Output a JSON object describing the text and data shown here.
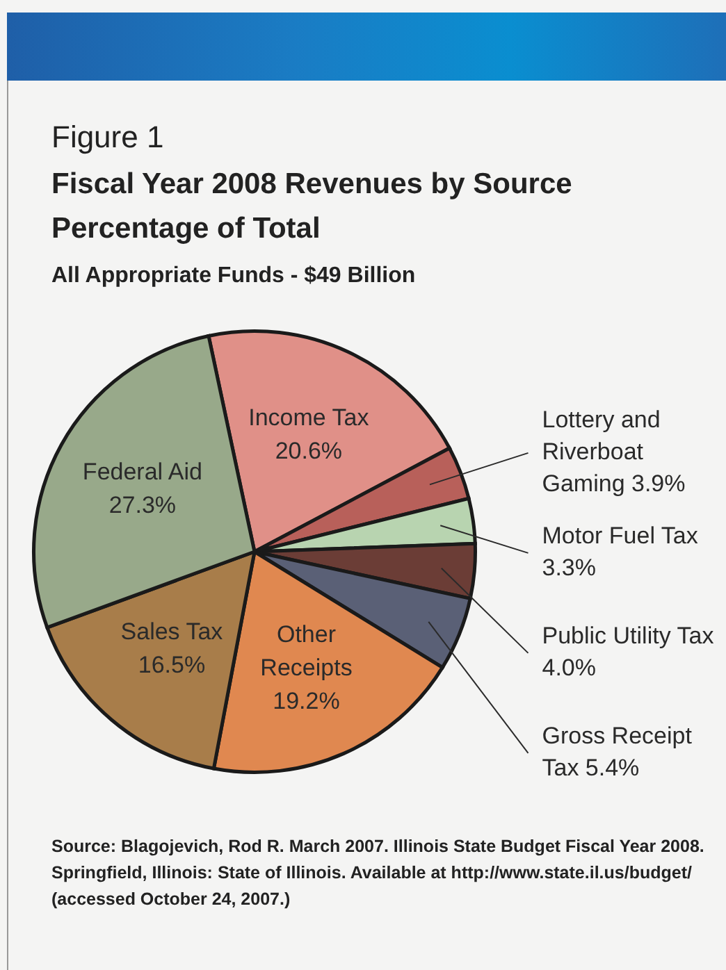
{
  "chart_data": {
    "type": "pie",
    "title": "Fiscal Year 2008 Revenues by Source",
    "subtitle": "Percentage of Total",
    "annotations": [
      "Figure 1",
      "All Appropriate Funds - $49 Billion",
      "Source: Blagojevich, Rod R. March 2007. Illinois State Budget Fiscal Year 2008. Springfield, Illinois: State of Illinois. Available at http://www.state.il.us/budget/ (accessed October 24, 2007.)"
    ],
    "categories": [
      "Income Tax",
      "Lottery and Riverboat Gaming",
      "Motor Fuel Tax",
      "Public Utility Tax",
      "Gross Receipt Tax",
      "Other Receipts",
      "Sales Tax",
      "Federal Aid"
    ],
    "values": [
      20.6,
      3.9,
      3.3,
      4.0,
      5.4,
      19.2,
      16.5,
      27.3
    ],
    "colors": [
      "#e09088",
      "#b8605a",
      "#b8d4b0",
      "#6b3d36",
      "#5a6076",
      "#e08850",
      "#a87d4a",
      "#98a98a"
    ],
    "value_labels": [
      "20.6%",
      "3.9%",
      "3.3%",
      "4.0%",
      "5.4%",
      "19.2%",
      "16.5%",
      "27.3%"
    ],
    "legend": false
  }
}
